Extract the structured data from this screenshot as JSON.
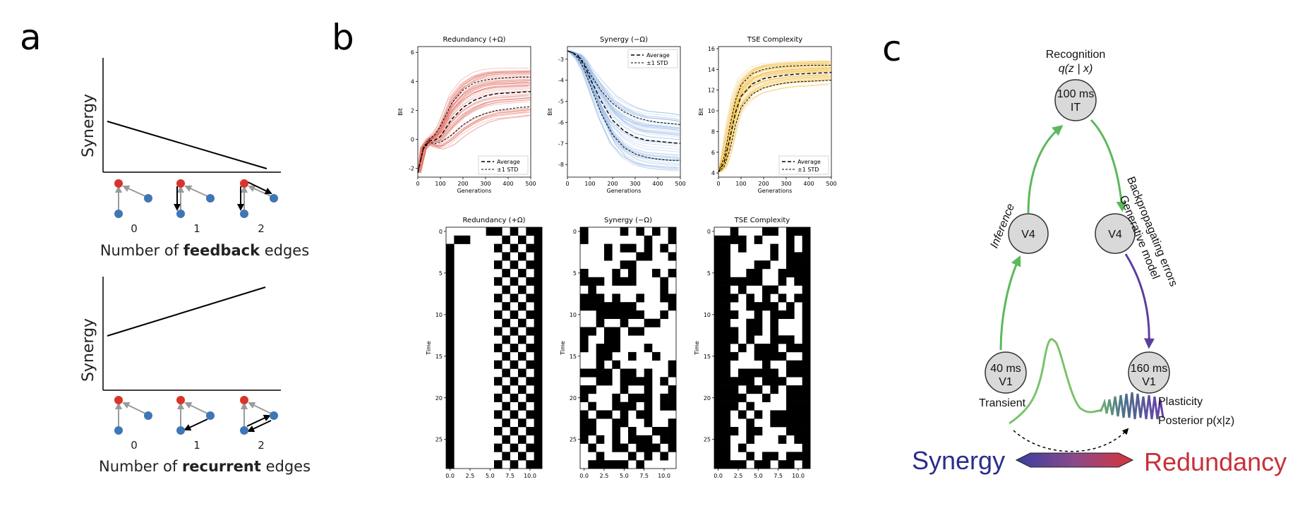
{
  "panel_labels": {
    "a": "a",
    "b": "b",
    "c": "c"
  },
  "chart_data": [
    {
      "id": "a-top",
      "type": "line",
      "title": "",
      "ylabel": "Synergy",
      "xlabel_parts": [
        "Number of ",
        "feedback",
        " edges"
      ],
      "categories": [
        "0",
        "1",
        "2"
      ],
      "values": [
        0.58,
        0.3,
        0.02
      ],
      "ylim": [
        0,
        1
      ],
      "trend": "decreasing"
    },
    {
      "id": "a-bottom",
      "type": "line",
      "title": "",
      "ylabel": "Synergy",
      "xlabel_parts": [
        "Number of ",
        "recurrent",
        " edges"
      ],
      "categories": [
        "0",
        "1",
        "2"
      ],
      "values": [
        0.45,
        0.68,
        0.92
      ],
      "ylim": [
        0,
        1
      ],
      "trend": "increasing"
    },
    {
      "id": "b-redundancy",
      "type": "line",
      "title": "Redundancy (+Ω)",
      "xlabel": "Generations",
      "ylabel": "Bit",
      "xlim": [
        0,
        500
      ],
      "ylim": [
        -2.6,
        6.4
      ],
      "xticks": [
        0,
        100,
        200,
        300,
        400,
        500
      ],
      "yticks": [
        -2,
        0,
        2,
        4,
        6
      ],
      "color": "#e06a5f",
      "series": [
        {
          "name": "Average",
          "x": [
            0,
            25,
            50,
            75,
            100,
            150,
            200,
            250,
            300,
            350,
            400,
            450,
            500
          ],
          "values": [
            -2.3,
            -0.6,
            -0.1,
            -0.05,
            0.2,
            1.4,
            2.2,
            2.7,
            3.0,
            3.15,
            3.2,
            3.25,
            3.3
          ]
        },
        {
          "name": "+1 STD",
          "x": [
            0,
            25,
            50,
            75,
            100,
            150,
            200,
            250,
            300,
            350,
            400,
            450,
            500
          ],
          "values": [
            -2.3,
            -0.55,
            0.0,
            0.3,
            0.9,
            2.5,
            3.4,
            3.9,
            4.1,
            4.2,
            4.25,
            4.3,
            4.3
          ]
        },
        {
          "name": "-1 STD",
          "x": [
            0,
            25,
            50,
            75,
            100,
            150,
            200,
            250,
            300,
            350,
            400,
            450,
            500
          ],
          "values": [
            -2.3,
            -0.65,
            -0.2,
            -0.3,
            -0.2,
            0.3,
            1.0,
            1.5,
            1.8,
            2.0,
            2.1,
            2.2,
            2.25
          ]
        }
      ],
      "legend": [
        "Average",
        "±1 STD"
      ],
      "legend_position": "lower-right"
    },
    {
      "id": "b-synergy",
      "type": "line",
      "title": "Synergy (−Ω)",
      "xlabel": "Generations",
      "ylabel": "Bit",
      "xlim": [
        0,
        500
      ],
      "ylim": [
        -8.6,
        -2.4
      ],
      "xticks": [
        0,
        100,
        200,
        300,
        400,
        500
      ],
      "yticks": [
        -8,
        -7,
        -6,
        -5,
        -4,
        -3
      ],
      "color": "#8fb4e3",
      "series": [
        {
          "name": "Average",
          "x": [
            0,
            25,
            50,
            75,
            100,
            150,
            200,
            250,
            300,
            350,
            400,
            450,
            500
          ],
          "values": [
            -2.6,
            -2.7,
            -2.9,
            -3.3,
            -3.9,
            -5.0,
            -5.9,
            -6.4,
            -6.7,
            -6.85,
            -6.9,
            -6.95,
            -7.0
          ]
        },
        {
          "name": "+1 STD",
          "x": [
            0,
            25,
            50,
            75,
            100,
            150,
            200,
            250,
            300,
            350,
            400,
            450,
            500
          ],
          "values": [
            -2.6,
            -2.7,
            -2.85,
            -3.2,
            -3.7,
            -4.5,
            -5.1,
            -5.5,
            -5.75,
            -5.9,
            -6.0,
            -6.05,
            -6.1
          ]
        },
        {
          "name": "-1 STD",
          "x": [
            0,
            25,
            50,
            75,
            100,
            150,
            200,
            250,
            300,
            350,
            400,
            450,
            500
          ],
          "values": [
            -2.6,
            -2.7,
            -3.0,
            -3.5,
            -4.2,
            -5.6,
            -6.6,
            -7.2,
            -7.5,
            -7.65,
            -7.75,
            -7.8,
            -7.8
          ]
        }
      ],
      "legend": [
        "Average",
        "±1 STD"
      ],
      "legend_position": "upper-right"
    },
    {
      "id": "b-tse",
      "type": "line",
      "title": "TSE Complexity",
      "xlabel": "Generations",
      "ylabel": "Bit",
      "xlim": [
        0,
        500
      ],
      "ylim": [
        3.6,
        16.2
      ],
      "xticks": [
        0,
        100,
        200,
        300,
        400,
        500
      ],
      "yticks": [
        4,
        6,
        8,
        10,
        12,
        14,
        16
      ],
      "color": "#f2c14e",
      "series": [
        {
          "name": "Average",
          "x": [
            0,
            25,
            50,
            75,
            100,
            150,
            200,
            250,
            300,
            350,
            400,
            450,
            500
          ],
          "values": [
            4.1,
            5.0,
            7.3,
            9.8,
            11.4,
            12.6,
            13.1,
            13.3,
            13.45,
            13.55,
            13.6,
            13.65,
            13.7
          ]
        },
        {
          "name": "+1 STD",
          "x": [
            0,
            25,
            50,
            75,
            100,
            150,
            200,
            250,
            300,
            350,
            400,
            450,
            500
          ],
          "values": [
            4.1,
            5.5,
            8.5,
            11.0,
            12.5,
            13.6,
            14.0,
            14.2,
            14.3,
            14.35,
            14.4,
            14.4,
            14.4
          ]
        },
        {
          "name": "-1 STD",
          "x": [
            0,
            25,
            50,
            75,
            100,
            150,
            200,
            250,
            300,
            350,
            400,
            450,
            500
          ],
          "values": [
            4.1,
            4.6,
            6.2,
            8.6,
            10.3,
            11.6,
            12.2,
            12.5,
            12.7,
            12.8,
            12.85,
            12.9,
            12.95
          ]
        }
      ],
      "legend": [
        "Average",
        "±1 STD"
      ],
      "legend_position": "lower-right"
    },
    {
      "id": "b-raster-redundancy",
      "type": "heatmap",
      "title": "Redundancy (+Ω)",
      "ylabel": "Time",
      "xticks": [
        "0.0",
        "2.5",
        "5.0",
        "7.5",
        "10.0"
      ],
      "yticks": [
        "0",
        "5",
        "10",
        "15",
        "20",
        "25"
      ],
      "rows": 29,
      "cols": 12,
      "description_cells": "columns 0 black (from t=2), 1-5 mostly white, 6-11 checkerboard"
    },
    {
      "id": "b-raster-synergy",
      "type": "heatmap",
      "title": "Synergy (−Ω)",
      "ylabel": "Time",
      "xticks": [
        "0.0",
        "2.5",
        "5.0",
        "7.5",
        "10.0"
      ],
      "yticks": [
        "0",
        "5",
        "10",
        "15",
        "20",
        "25"
      ],
      "rows": 29,
      "cols": 12
    },
    {
      "id": "b-raster-tse",
      "type": "heatmap",
      "title": "TSE Complexity",
      "ylabel": "Time",
      "xticks": [
        "0.0",
        "2.5",
        "5.0",
        "7.5",
        "10.0"
      ],
      "yticks": [
        "0",
        "5",
        "10",
        "15",
        "20",
        "25"
      ],
      "rows": 29,
      "cols": 12
    }
  ],
  "legend_labels": {
    "average": "Average",
    "std": "±1 STD"
  },
  "diagram": {
    "recognition": "Recognition",
    "recognition_formula": "q(z | x)",
    "it_node": {
      "time": "100 ms",
      "area": "IT"
    },
    "v4_left": "V4",
    "v4_right": "V4",
    "v1_left": {
      "time": "40 ms",
      "area": "V1"
    },
    "v1_right": {
      "time": "160 ms",
      "area": "V1"
    },
    "inference": "Inference",
    "backprop": "Backpropagating errors",
    "generative": "Generative model",
    "transient": "Transient",
    "plasticity": "Plasticity",
    "posterior": "Posterior p(x|z)",
    "synergy": "Synergy",
    "redundancy": "Redundancy",
    "colors": {
      "synergy": "#2b2d8a",
      "redundancy": "#c8303a",
      "green": "#5cb85c",
      "purple": "#5b3f9e"
    }
  }
}
